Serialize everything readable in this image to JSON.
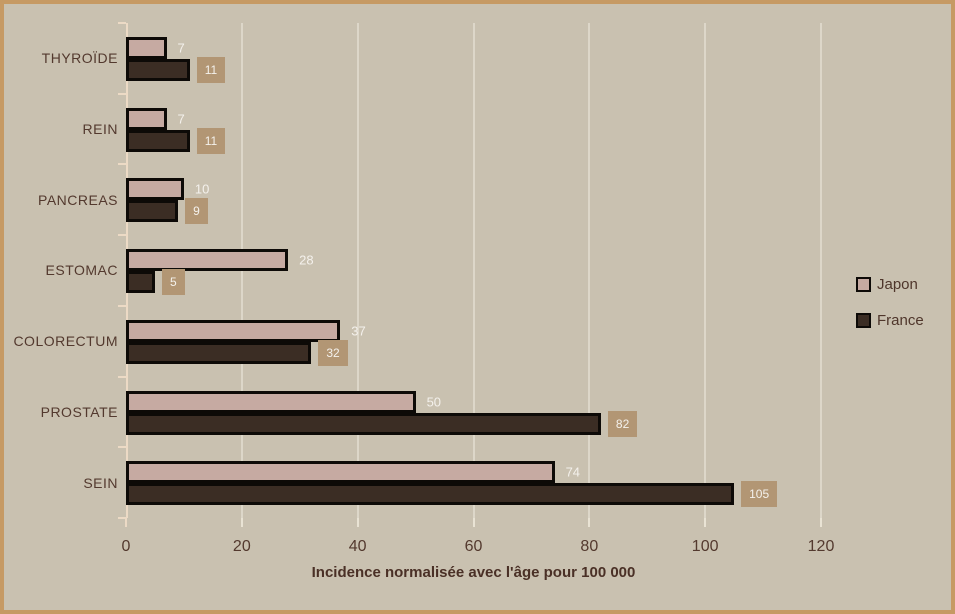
{
  "chart_data": {
    "type": "bar",
    "orientation": "horizontal",
    "title": "",
    "xlabel": "Incidence normalisée avec l'âge pour 100 000",
    "ylabel": "",
    "categories": [
      "THYROÏDE",
      "REIN",
      "PANCREAS",
      "ESTOMAC",
      "COLORECTUM",
      "PROSTATE",
      "SEIN"
    ],
    "series": [
      {
        "name": "Japon",
        "values": [
          7,
          7,
          10,
          28,
          37,
          50,
          74
        ],
        "color": "#c6aaa2",
        "label_style": "plain"
      },
      {
        "name": "France",
        "values": [
          11,
          11,
          9,
          5,
          32,
          82,
          105
        ],
        "color": "#3b2d24",
        "label_style": "boxed"
      }
    ],
    "x_ticks": [
      0,
      20,
      40,
      60,
      80,
      100,
      120
    ],
    "xlim": [
      0,
      120
    ],
    "grid": true,
    "legend_position": "right"
  },
  "colors": {
    "background": "#c9c1b0",
    "frame_border": "#c69a64",
    "japon_bar": "#c6aaa2",
    "france_bar": "#3b2d24",
    "bar_border": "#0d0a07",
    "gridline": "#ddd7c9",
    "axis_line": "#ecdac5",
    "label_box": "#b29674",
    "value_text": "#f4f1ec",
    "axis_text": "#53392e"
  }
}
